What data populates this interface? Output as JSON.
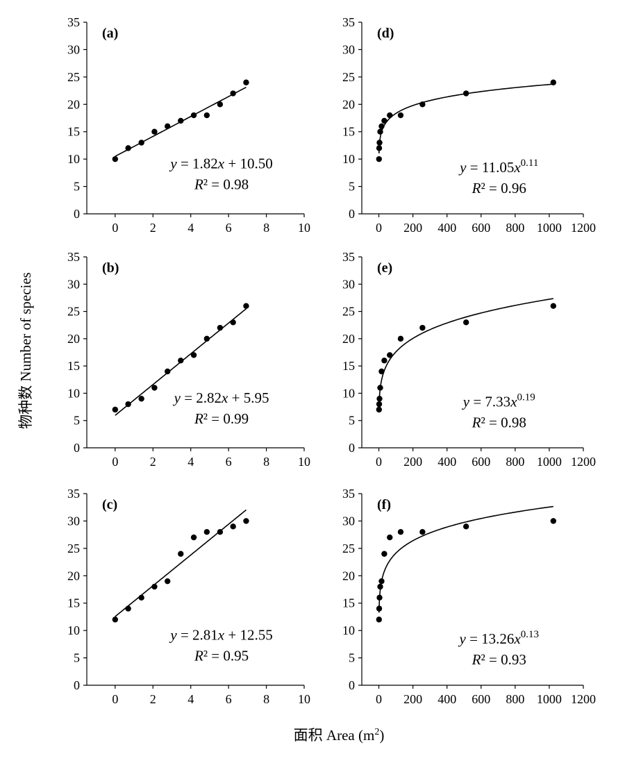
{
  "figure": {
    "ylabel": "物种数 Number of species",
    "xlabel_main": "面积 Area (m",
    "xlabel_sup": "2",
    "xlabel_end": ")"
  },
  "chart_data": [
    {
      "id": "a",
      "panel_label": "(a)",
      "type": "scatter",
      "x": [
        0,
        0.69,
        1.39,
        2.08,
        2.77,
        3.47,
        4.16,
        4.85,
        5.55,
        6.24,
        6.93
      ],
      "y": [
        10,
        12,
        13,
        15,
        16,
        17,
        18,
        18,
        20,
        22,
        24
      ],
      "xlim": [
        -1.5,
        10
      ],
      "ylim": [
        0,
        35
      ],
      "xticks": [
        0,
        2,
        4,
        6,
        8,
        10
      ],
      "yticks": [
        0,
        5,
        10,
        15,
        20,
        25,
        30,
        35
      ],
      "fit": {
        "model": "linear",
        "a": 1.82,
        "b": 10.5
      },
      "equation": {
        "pre": "y",
        "mid": " = 1.82",
        "var": "x",
        "post": " + 10.50",
        "exp": ""
      },
      "r2": {
        "label": "R",
        "text": "² = 0.98"
      }
    },
    {
      "id": "b",
      "panel_label": "(b)",
      "type": "scatter",
      "x": [
        0,
        0.69,
        1.39,
        2.08,
        2.77,
        3.47,
        4.16,
        4.85,
        5.55,
        6.24,
        6.93
      ],
      "y": [
        7,
        8,
        9,
        11,
        14,
        16,
        17,
        20,
        22,
        23,
        26
      ],
      "xlim": [
        -1.5,
        10
      ],
      "ylim": [
        0,
        35
      ],
      "xticks": [
        0,
        2,
        4,
        6,
        8,
        10
      ],
      "yticks": [
        0,
        5,
        10,
        15,
        20,
        25,
        30,
        35
      ],
      "fit": {
        "model": "linear",
        "a": 2.82,
        "b": 5.95
      },
      "equation": {
        "pre": "y",
        "mid": " = 2.82",
        "var": "x",
        "post": " + 5.95",
        "exp": ""
      },
      "r2": {
        "label": "R",
        "text": "² = 0.99"
      }
    },
    {
      "id": "c",
      "panel_label": "(c)",
      "type": "scatter",
      "x": [
        0,
        0.69,
        1.39,
        2.08,
        2.77,
        3.47,
        4.16,
        4.85,
        5.55,
        6.24,
        6.93
      ],
      "y": [
        12,
        14,
        16,
        18,
        19,
        24,
        27,
        28,
        28,
        29,
        30
      ],
      "xlim": [
        -1.5,
        10
      ],
      "ylim": [
        0,
        35
      ],
      "xticks": [
        0,
        2,
        4,
        6,
        8,
        10
      ],
      "yticks": [
        0,
        5,
        10,
        15,
        20,
        25,
        30,
        35
      ],
      "fit": {
        "model": "linear",
        "a": 2.81,
        "b": 12.55
      },
      "equation": {
        "pre": "y",
        "mid": " = 2.81",
        "var": "x",
        "post": " + 12.55",
        "exp": ""
      },
      "r2": {
        "label": "R",
        "text": "² = 0.95"
      }
    },
    {
      "id": "d",
      "panel_label": "(d)",
      "type": "scatter",
      "x": [
        1,
        2,
        4,
        8,
        16,
        32,
        64,
        128,
        256,
        512,
        1024
      ],
      "y": [
        10,
        12,
        13,
        15,
        16,
        17,
        18,
        18,
        20,
        22,
        24
      ],
      "xlim": [
        -100,
        1200
      ],
      "ylim": [
        0,
        35
      ],
      "xticks": [
        0,
        200,
        400,
        600,
        800,
        1000,
        1200
      ],
      "yticks": [
        0,
        5,
        10,
        15,
        20,
        25,
        30,
        35
      ],
      "fit": {
        "model": "power",
        "a": 11.05,
        "b": 0.11
      },
      "equation": {
        "pre": "y",
        "mid": " = 11.05",
        "var": "x",
        "post": "",
        "exp": "0.11"
      },
      "r2": {
        "label": "R",
        "text": "² = 0.96"
      }
    },
    {
      "id": "e",
      "panel_label": "(e)",
      "type": "scatter",
      "x": [
        1,
        2,
        4,
        8,
        16,
        32,
        64,
        128,
        256,
        512,
        1024
      ],
      "y": [
        7,
        8,
        9,
        11,
        14,
        16,
        17,
        20,
        22,
        23,
        26
      ],
      "xlim": [
        -100,
        1200
      ],
      "ylim": [
        0,
        35
      ],
      "xticks": [
        0,
        200,
        400,
        600,
        800,
        1000,
        1200
      ],
      "yticks": [
        0,
        5,
        10,
        15,
        20,
        25,
        30,
        35
      ],
      "fit": {
        "model": "power",
        "a": 7.33,
        "b": 0.19
      },
      "equation": {
        "pre": "y",
        "mid": " = 7.33",
        "var": "x",
        "post": "",
        "exp": "0.19"
      },
      "r2": {
        "label": "R",
        "text": "² = 0.98"
      }
    },
    {
      "id": "f",
      "panel_label": "(f)",
      "type": "scatter",
      "x": [
        1,
        2,
        4,
        8,
        16,
        32,
        64,
        128,
        256,
        512,
        1024
      ],
      "y": [
        12,
        14,
        16,
        18,
        19,
        24,
        27,
        28,
        28,
        29,
        30
      ],
      "xlim": [
        -100,
        1200
      ],
      "ylim": [
        0,
        35
      ],
      "xticks": [
        0,
        200,
        400,
        600,
        800,
        1000,
        1200
      ],
      "yticks": [
        0,
        5,
        10,
        15,
        20,
        25,
        30,
        35
      ],
      "fit": {
        "model": "power",
        "a": 13.26,
        "b": 0.13
      },
      "equation": {
        "pre": "y",
        "mid": " = 13.26",
        "var": "x",
        "post": "",
        "exp": "0.13"
      },
      "r2": {
        "label": "R",
        "text": "² = 0.93"
      }
    }
  ]
}
